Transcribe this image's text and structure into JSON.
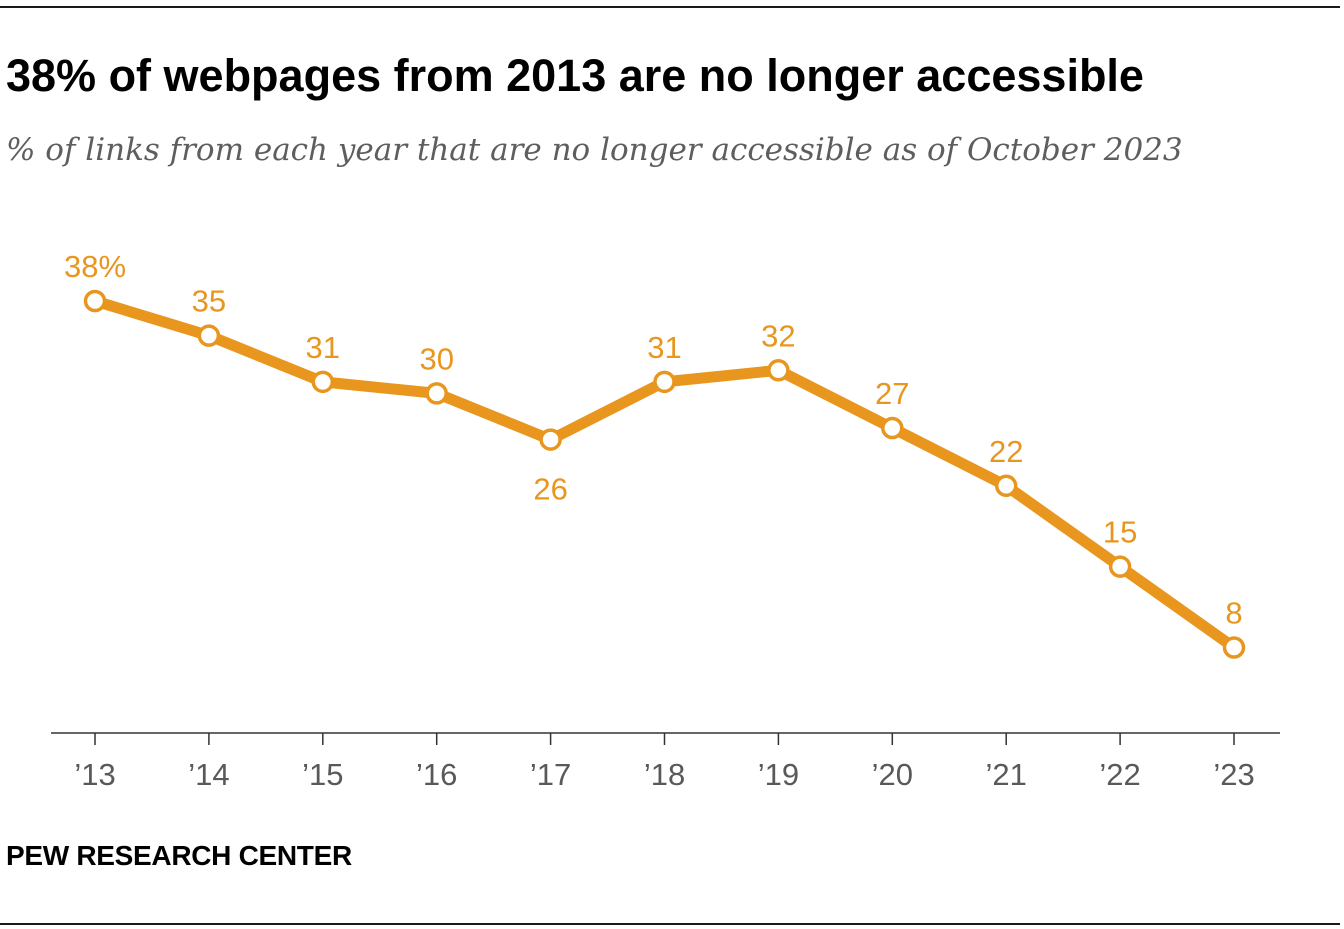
{
  "header": {
    "title": "38% of webpages from 2013 are no longer accessible",
    "subtitle": "% of links from each year that are no longer accessible as of October 2023"
  },
  "footer": {
    "source": "PEW RESEARCH CENTER"
  },
  "colors": {
    "series": "#e8961e",
    "axis": "#333333",
    "tick_label": "#595959"
  },
  "chart_data": {
    "type": "line",
    "title": "38% of webpages from 2013 are no longer accessible",
    "subtitle": "% of links from each year that are no longer accessible as of October 2023",
    "categories": [
      "’13",
      "’14",
      "’15",
      "’16",
      "’17",
      "’18",
      "’19",
      "’20",
      "’21",
      "’22",
      "’23"
    ],
    "values": [
      38,
      35,
      31,
      30,
      26,
      31,
      32,
      27,
      22,
      15,
      8
    ],
    "data_labels": [
      "38%",
      "35",
      "31",
      "30",
      "26",
      "31",
      "32",
      "27",
      "22",
      "15",
      "8"
    ],
    "label_positions": [
      "above",
      "above",
      "above",
      "above",
      "below",
      "above",
      "above",
      "above",
      "above",
      "above",
      "above"
    ],
    "xlabel": "",
    "ylabel": "",
    "ylim": [
      0,
      40
    ],
    "grid": false,
    "markers": "open-circle"
  }
}
